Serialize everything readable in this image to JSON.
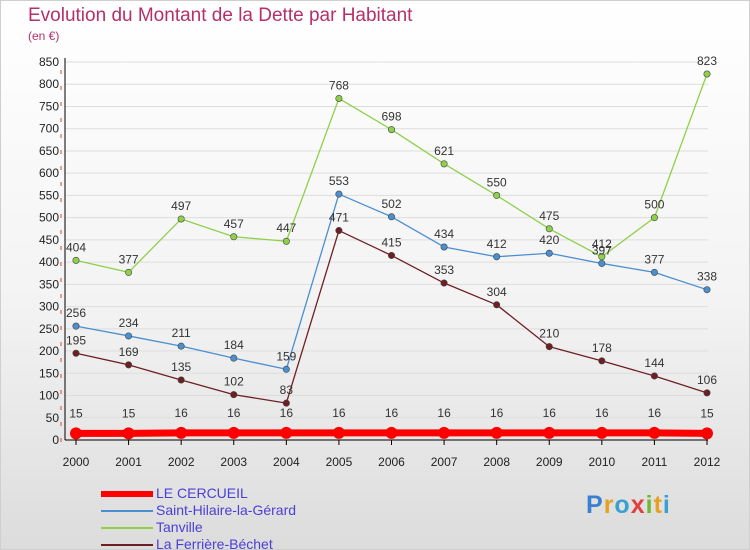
{
  "title": "Evolution du Montant de la Dette par Habitant",
  "subtitle": "(en €)",
  "logo": "Proxiti",
  "chart_data": {
    "type": "line",
    "title": "Evolution du Montant de la Dette par Habitant",
    "ylabel": "(en €)",
    "xlabel": "",
    "ylim": [
      0,
      850
    ],
    "yticks": [
      0,
      50,
      100,
      150,
      200,
      250,
      300,
      350,
      400,
      450,
      500,
      550,
      600,
      650,
      700,
      750,
      800,
      850
    ],
    "x": [
      "2000",
      "2001",
      "2002",
      "2003",
      "2004",
      "2005",
      "2006",
      "2007",
      "2008",
      "2009",
      "2010",
      "2011",
      "2012"
    ],
    "legend_position": "bottom-left",
    "series": [
      {
        "name": "LE CERCUEIL",
        "color": "#ff0000",
        "values": [
          15,
          15,
          16,
          16,
          16,
          16,
          16,
          16,
          16,
          16,
          16,
          16,
          15
        ]
      },
      {
        "name": "Saint-Hilaire-la-Gérard",
        "color": "#4a8fd0",
        "values": [
          256,
          234,
          211,
          184,
          159,
          553,
          502,
          434,
          412,
          420,
          397,
          377,
          338
        ]
      },
      {
        "name": "Tanville",
        "color": "#8fd04a",
        "values": [
          404,
          377,
          497,
          457,
          447,
          768,
          698,
          621,
          550,
          475,
          412,
          500,
          823
        ]
      },
      {
        "name": "La Ferrière-Béchet",
        "color": "#6e1f24",
        "values": [
          195,
          169,
          135,
          102,
          83,
          471,
          415,
          353,
          304,
          210,
          178,
          144,
          106
        ]
      }
    ],
    "label_text": {
      "LE CERCUEIL": [
        "15",
        "15",
        "16",
        "16",
        "16",
        "16",
        "16",
        "16",
        "16",
        "16",
        "16",
        "16",
        "15"
      ],
      "Saint-Hilaire-la-Gérard": [
        "256",
        "234",
        "211",
        "184",
        "159",
        "553",
        "502",
        "434",
        "412",
        "420",
        "397",
        "377",
        "338"
      ],
      "Tanville": [
        "404",
        "377",
        "497",
        "457",
        "447",
        "768",
        "698",
        "621",
        "550",
        "475",
        "412",
        "500",
        "823"
      ],
      "La Ferrière-Béchet": [
        "195",
        "169",
        "135",
        "102",
        "83",
        "471",
        "415",
        "353",
        "304",
        "210",
        "178",
        "144",
        "106"
      ]
    }
  }
}
